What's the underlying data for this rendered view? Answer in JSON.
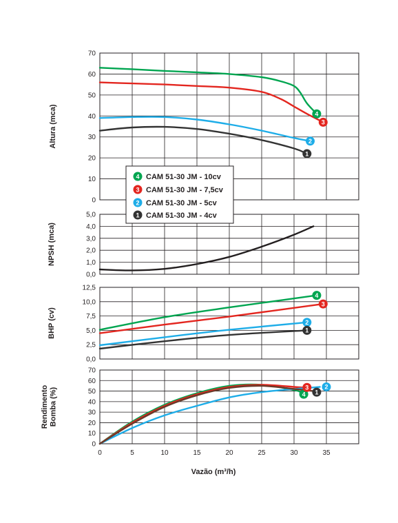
{
  "chart_data": {
    "x_axis": {
      "label": "Vazão (m³/h)",
      "ticks": [
        "0",
        "5",
        "10",
        "15",
        "20",
        "25",
        "30",
        "35"
      ],
      "range": [
        0,
        40
      ],
      "grid_step": 5
    },
    "legend": {
      "placement": "inside-top-left",
      "entries": [
        {
          "id": "4",
          "name": "CAM 51-30 JM - 10cv",
          "color": "#00a550"
        },
        {
          "id": "3",
          "name": "CAM 51-30 JM - 7,5cv",
          "color": "#e3261f"
        },
        {
          "id": "2",
          "name": "CAM 51-30 JM - 5cv",
          "color": "#1eade8"
        },
        {
          "id": "1",
          "name": "CAM 51-30 JM - 4cv",
          "color": "#333333"
        }
      ]
    },
    "panels": [
      {
        "id": "altura",
        "type": "line",
        "ylabel": "Altura (mca)",
        "yrange": [
          0,
          70
        ],
        "yticks": [
          "0",
          "10",
          "20",
          "30",
          "40",
          "50",
          "60",
          "70"
        ],
        "ytick_values": [
          0,
          10,
          20,
          30,
          40,
          50,
          60,
          70
        ],
        "series": [
          {
            "id": "4",
            "color": "#00a550",
            "x": [
              0,
              5,
              10,
              15,
              20,
              25,
              28,
              30,
              31,
              32,
              33.5
            ],
            "y": [
              63,
              62.3,
              61.5,
              60.8,
              60,
              58.5,
              56.5,
              54.3,
              51,
              46,
              41
            ],
            "marker": {
              "x": 33.5,
              "y": 41
            }
          },
          {
            "id": "3",
            "color": "#e3261f",
            "x": [
              0,
              5,
              10,
              15,
              20,
              25,
              28,
              30,
              32,
              34.5
            ],
            "y": [
              56,
              55.5,
              55,
              54.3,
              53.5,
              51.5,
              48,
              44.5,
              41,
              37
            ],
            "marker": {
              "x": 34.5,
              "y": 37
            }
          },
          {
            "id": "2",
            "color": "#1eade8",
            "x": [
              0,
              5,
              10,
              15,
              20,
              25,
              30,
              32.5
            ],
            "y": [
              39,
              39.5,
              39.5,
              38.3,
              36,
              33,
              29.5,
              28
            ],
            "marker": {
              "x": 32.5,
              "y": 28
            }
          },
          {
            "id": "1",
            "color": "#333333",
            "x": [
              0,
              5,
              10,
              15,
              20,
              25,
              30,
              32
            ],
            "y": [
              33,
              34.5,
              34.8,
              33.8,
              31.5,
              28.5,
              24.5,
              22
            ],
            "marker": {
              "x": 32,
              "y": 22
            }
          }
        ]
      },
      {
        "id": "npsh",
        "type": "line",
        "ylabel": "NPSH (mca)",
        "yrange": [
          0,
          5
        ],
        "yticks": [
          "0,0",
          "1,0",
          "2,0",
          "3,0",
          "4,0",
          "5,0"
        ],
        "ytick_values": [
          0,
          1,
          2,
          3,
          4,
          5
        ],
        "series": [
          {
            "id": "npsh",
            "color": "#231f20",
            "x": [
              0,
              5,
              10,
              15,
              20,
              25,
              30,
              33
            ],
            "y": [
              0.4,
              0.32,
              0.45,
              0.85,
              1.45,
              2.3,
              3.3,
              4.0
            ]
          }
        ]
      },
      {
        "id": "bhp",
        "type": "line",
        "ylabel": "BHP (cv)",
        "yrange": [
          0,
          12.5
        ],
        "yticks": [
          "0,0",
          "2,5",
          "5,0",
          "7,5",
          "10,0",
          "12,5"
        ],
        "ytick_values": [
          0,
          2.5,
          5,
          7.5,
          10,
          12.5
        ],
        "series": [
          {
            "id": "4",
            "color": "#00a550",
            "x": [
              0,
              10,
              20,
              33.5
            ],
            "y": [
              5.1,
              7.3,
              9.0,
              11.1
            ],
            "marker": {
              "x": 33.5,
              "y": 11.1
            }
          },
          {
            "id": "3",
            "color": "#e3261f",
            "x": [
              0,
              10,
              20,
              34.5
            ],
            "y": [
              4.5,
              6.0,
              7.4,
              9.6
            ],
            "marker": {
              "x": 34.5,
              "y": 9.6
            }
          },
          {
            "id": "2",
            "color": "#1eade8",
            "x": [
              0,
              10,
              20,
              32
            ],
            "y": [
              2.4,
              3.8,
              5.1,
              6.4
            ],
            "marker": {
              "x": 32,
              "y": 6.4
            }
          },
          {
            "id": "1",
            "color": "#333333",
            "x": [
              0,
              10,
              20,
              32
            ],
            "y": [
              1.8,
              3.1,
              4.2,
              5.0
            ],
            "marker": {
              "x": 32,
              "y": 5.0
            }
          }
        ]
      },
      {
        "id": "rendimento",
        "type": "line",
        "ylabel": "Rendimento Bomba (%)",
        "yrange": [
          0,
          70
        ],
        "yticks": [
          "0",
          "10",
          "20",
          "30",
          "40",
          "50",
          "60",
          "70"
        ],
        "ytick_values": [
          0,
          10,
          20,
          30,
          40,
          50,
          60,
          70
        ],
        "series": [
          {
            "id": "4",
            "color": "#00a550",
            "x": [
              0,
              5,
              10,
              15,
              20,
              25,
              30,
              31
            ],
            "y": [
              0,
              21,
              37,
              48,
              55,
              56,
              51,
              49
            ],
            "marker": {
              "x": 31.5,
              "y": 47
            }
          },
          {
            "id": "3",
            "color": "#e3261f",
            "x": [
              0,
              5,
              10,
              15,
              20,
              25,
              30,
              32
            ],
            "y": [
              0,
              20,
              36,
              47,
              54,
              56,
              54,
              53
            ],
            "marker": {
              "x": 32,
              "y": 53.5
            }
          },
          {
            "id": "2",
            "color": "#1eade8",
            "x": [
              0,
              5,
              10,
              15,
              20,
              25,
              30,
              34
            ],
            "y": [
              0,
              15,
              27,
              36,
              44,
              49,
              52,
              54
            ],
            "marker": {
              "x": 35,
              "y": 54
            }
          },
          {
            "id": "1",
            "color": "#6b3a2a",
            "x": [
              0,
              5,
              10,
              15,
              20,
              25,
              30,
              33
            ],
            "y": [
              0,
              19,
              35,
              46,
              53,
              55,
              52,
              50
            ],
            "marker": {
              "x": 33.5,
              "y": 49
            }
          }
        ]
      }
    ]
  }
}
